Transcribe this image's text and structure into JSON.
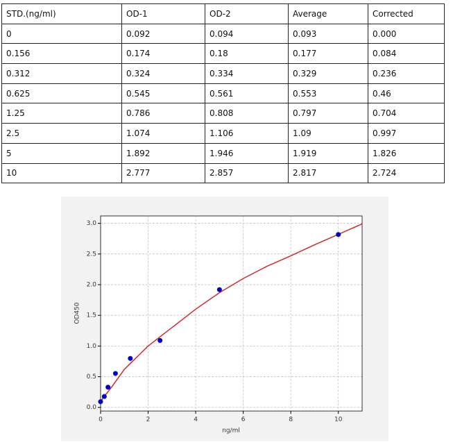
{
  "table": {
    "header": [
      "STD.(ng/ml)",
      "OD-1",
      "OD-2",
      "Average",
      "Corrected"
    ],
    "rows": [
      [
        "0",
        "0.092",
        "0.094",
        "0.093",
        "0.000"
      ],
      [
        "0.156",
        "0.174",
        "0.18",
        "0.177",
        "0.084"
      ],
      [
        "0.312",
        "0.324",
        "0.334",
        "0.329",
        "0.236"
      ],
      [
        "0.625",
        "0.545",
        "0.561",
        "0.553",
        "0.46"
      ],
      [
        "1.25",
        "0.786",
        "0.808",
        "0.797",
        "0.704"
      ],
      [
        "2.5",
        "1.074",
        "1.106",
        "1.09",
        "0.997"
      ],
      [
        "5",
        "1.892",
        "1.946",
        "1.919",
        "1.826"
      ],
      [
        "10",
        "2.777",
        "2.857",
        "2.817",
        "2.724"
      ]
    ]
  },
  "chart_data": {
    "type": "scatter",
    "x_label": "ng/ml",
    "y_label": "OD450",
    "x": [
      0,
      0.156,
      0.312,
      0.625,
      1.25,
      2.5,
      5,
      10
    ],
    "values": [
      0.093,
      0.177,
      0.329,
      0.553,
      0.797,
      1.09,
      1.919,
      2.817
    ],
    "color": "#0000cc",
    "fit": {
      "color": "#d62728",
      "x": [
        0,
        0.5,
        1,
        2,
        3,
        4,
        5,
        6,
        7,
        8,
        9,
        10,
        11
      ],
      "values": [
        0.1,
        0.35,
        0.62,
        1.0,
        1.3,
        1.6,
        1.87,
        2.1,
        2.3,
        2.47,
        2.65,
        2.82,
        2.99
      ]
    },
    "xlim": [
      0,
      11
    ],
    "ylim": [
      -0.06,
      3.12
    ],
    "xticks": [
      0,
      2,
      4,
      6,
      8,
      10
    ],
    "yticks": [
      {
        "value": 0,
        "label": "0.0"
      },
      0.5,
      {
        "value": 1,
        "label": "1.0"
      },
      1.5,
      {
        "value": 2,
        "label": "2.0"
      },
      2.5,
      {
        "value": 3,
        "label": "3.0"
      }
    ],
    "grid": true
  }
}
